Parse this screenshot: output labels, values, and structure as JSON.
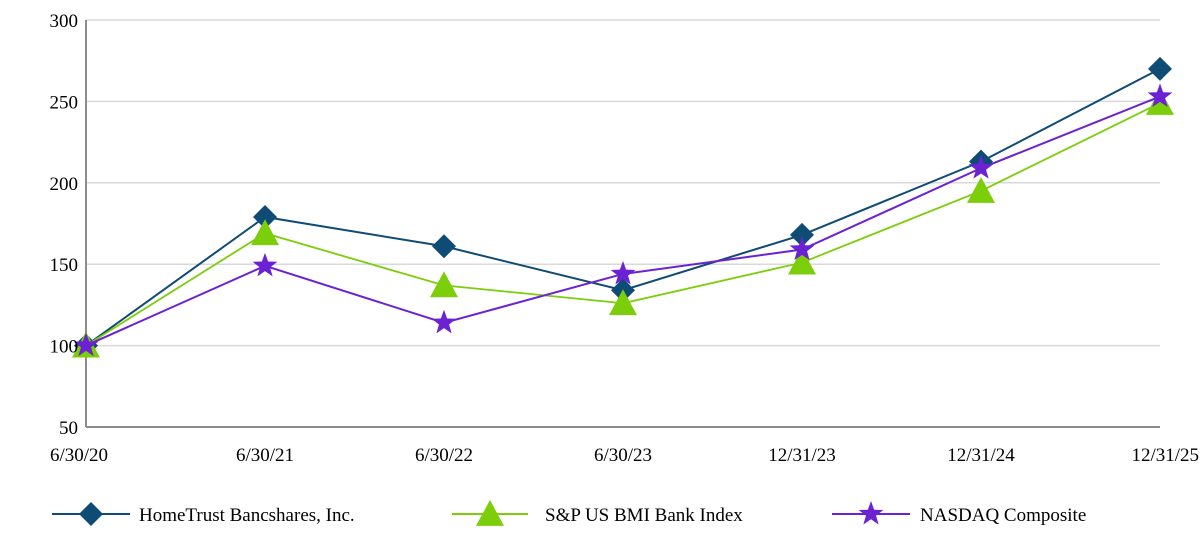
{
  "chart_data": {
    "type": "line",
    "title": "",
    "xlabel": "",
    "ylabel": "",
    "categories": [
      "6/30/20",
      "6/30/21",
      "6/30/22",
      "6/30/23",
      "12/31/23",
      "12/31/24",
      "12/31/25"
    ],
    "ylim": [
      50,
      300
    ],
    "yticks": [
      50,
      100,
      150,
      200,
      250,
      300
    ],
    "grid": "horizontal",
    "legend_position": "bottom",
    "series": [
      {
        "name": "HomeTrust Bancshares, Inc.",
        "color": "#0f4c75",
        "marker": "diamond",
        "values": [
          100,
          179,
          161,
          134,
          168,
          213,
          270
        ]
      },
      {
        "name": "S&P US BMI Bank Index",
        "color": "#7ccd0a",
        "marker": "triangle",
        "values": [
          100,
          169,
          137,
          126,
          151,
          195,
          249
        ]
      },
      {
        "name": "NASDAQ Composite",
        "color": "#6a22d3",
        "marker": "star",
        "values": [
          100,
          149,
          114,
          144,
          159,
          209,
          253
        ]
      }
    ]
  }
}
